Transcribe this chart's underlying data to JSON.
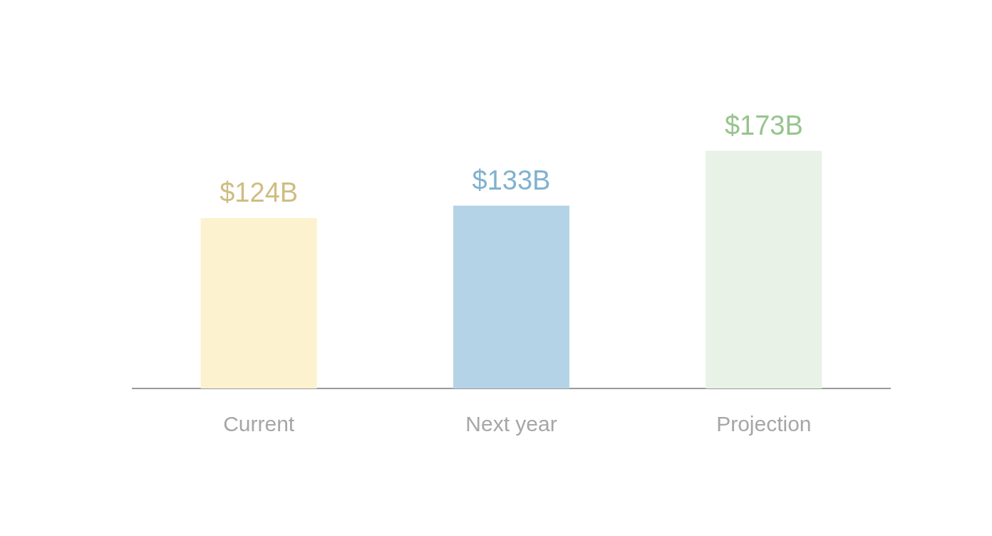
{
  "chart_data": {
    "type": "bar",
    "categories": [
      "Current",
      "Next year",
      "Projection"
    ],
    "values": [
      124,
      133,
      173
    ],
    "colors": [
      "#fdf2cf",
      "#b5d3e6",
      "#e8f2e6"
    ],
    "value_labels": [
      "$124B",
      "$133B",
      "$173B"
    ],
    "tick_labels": "x",
    "grid": false,
    "legend": false
  }
}
